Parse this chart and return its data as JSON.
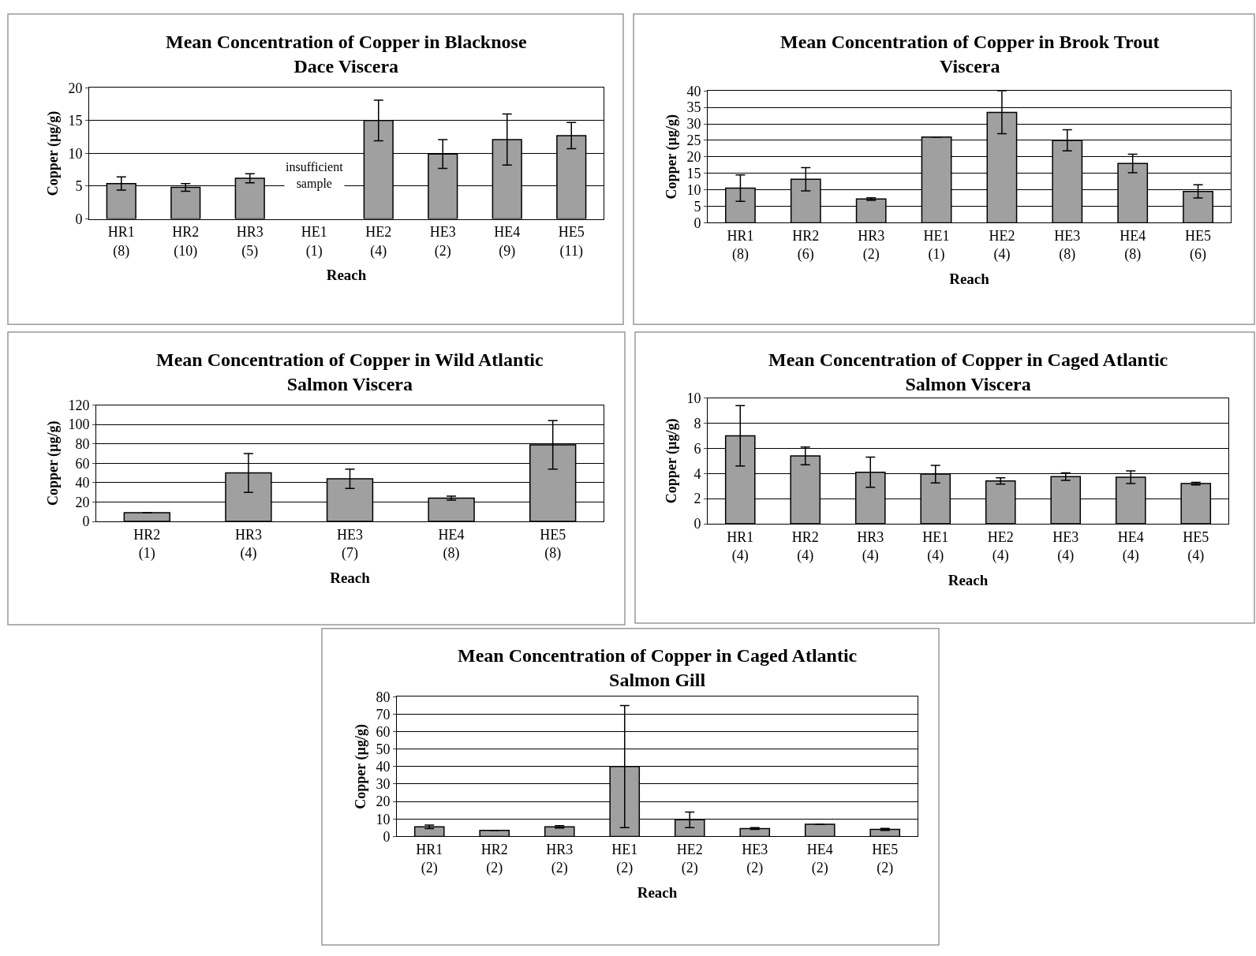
{
  "chart_data": [
    {
      "type": "bar",
      "title": "Mean Concentration of Copper in Blacknose\nDace Viscera",
      "xlabel": "Reach",
      "ylabel": "Copper (µg/g)",
      "categories": [
        "HR1\n(8)",
        "HR2\n(10)",
        "HR3\n(5)",
        "HE1\n(1)",
        "HE2\n(4)",
        "HE3\n(2)",
        "HE4\n(9)",
        "HE5\n(11)"
      ],
      "values": [
        5.4,
        4.8,
        6.2,
        null,
        15,
        9.9,
        12.1,
        12.7
      ],
      "errors": [
        1,
        0.6,
        0.7,
        null,
        3.1,
        2.2,
        3.9,
        2
      ],
      "color": "#a0a0a0",
      "ylim": [
        0,
        20
      ],
      "yticks": [
        0,
        5,
        10,
        15,
        20
      ],
      "grid": "y",
      "annotations": [
        "insufficient\nsample"
      ]
    },
    {
      "type": "bar",
      "title": "Mean Concentration of Copper in Brook Trout\nViscera",
      "xlabel": "Reach",
      "ylabel": "Copper (µg/g)",
      "categories": [
        "HR1\n(8)",
        "HR2\n(6)",
        "HR3\n(2)",
        "HE1\n(1)",
        "HE2\n(4)",
        "HE3\n(8)",
        "HE4\n(8)",
        "HE5\n(6)"
      ],
      "values": [
        10.5,
        13.2,
        7.2,
        26,
        33.5,
        25,
        18,
        9.5
      ],
      "errors": [
        4,
        3.5,
        0.4,
        null,
        6.5,
        3.2,
        2.8,
        2
      ],
      "color": "#a0a0a0",
      "ylim": [
        0,
        40
      ],
      "yticks": [
        0,
        5,
        10,
        15,
        20,
        25,
        30,
        35,
        40
      ],
      "grid": "y"
    },
    {
      "type": "bar",
      "title": "Mean Concentration of Copper in Wild Atlantic\nSalmon Viscera",
      "xlabel": "Reach",
      "ylabel": "Copper (µg/g)",
      "categories": [
        "HR2\n(1)",
        "HR3\n(4)",
        "HE3\n(7)",
        "HE4\n(8)",
        "HE5\n(8)"
      ],
      "values": [
        9,
        50,
        44,
        24,
        79
      ],
      "errors": [
        null,
        20,
        10,
        2,
        25
      ],
      "color": "#a0a0a0",
      "ylim": [
        0,
        120
      ],
      "yticks": [
        0,
        20,
        40,
        60,
        80,
        100,
        120
      ],
      "grid": "y"
    },
    {
      "type": "bar",
      "title": "Mean Concentration of Copper in Caged Atlantic\nSalmon Viscera",
      "xlabel": "Reach",
      "ylabel": "Copper (µg/g)",
      "categories": [
        "HR1\n(4)",
        "HR2\n(4)",
        "HR3\n(4)",
        "HE1\n(4)",
        "HE2\n(4)",
        "HE3\n(4)",
        "HE4\n(4)",
        "HE5\n(4)"
      ],
      "values": [
        7,
        5.4,
        4.1,
        3.95,
        3.4,
        3.75,
        3.7,
        3.2
      ],
      "errors": [
        2.4,
        0.7,
        1.2,
        0.7,
        0.25,
        0.3,
        0.5,
        0.1
      ],
      "color": "#a0a0a0",
      "ylim": [
        0,
        10
      ],
      "yticks": [
        0,
        2,
        4,
        6,
        8,
        10
      ],
      "grid": "y"
    },
    {
      "type": "bar",
      "title": "Mean Concentration of Copper in Caged Atlantic\nSalmon Gill",
      "xlabel": "Reach",
      "ylabel": "Copper (µg/g)",
      "categories": [
        "HR1\n(2)",
        "HR2\n(2)",
        "HR3\n(2)",
        "HE1\n(2)",
        "HE2\n(2)",
        "HE3\n(2)",
        "HE4\n(2)",
        "HE5\n(2)"
      ],
      "values": [
        5.5,
        3.5,
        5.5,
        40,
        9.5,
        4.5,
        7,
        4
      ],
      "errors": [
        1,
        null,
        0.7,
        35,
        4.5,
        0.5,
        null,
        0.6
      ],
      "color": "#a0a0a0",
      "ylim": [
        0,
        80
      ],
      "yticks": [
        0,
        10,
        20,
        30,
        40,
        50,
        60,
        70,
        80
      ],
      "grid": "y"
    }
  ]
}
